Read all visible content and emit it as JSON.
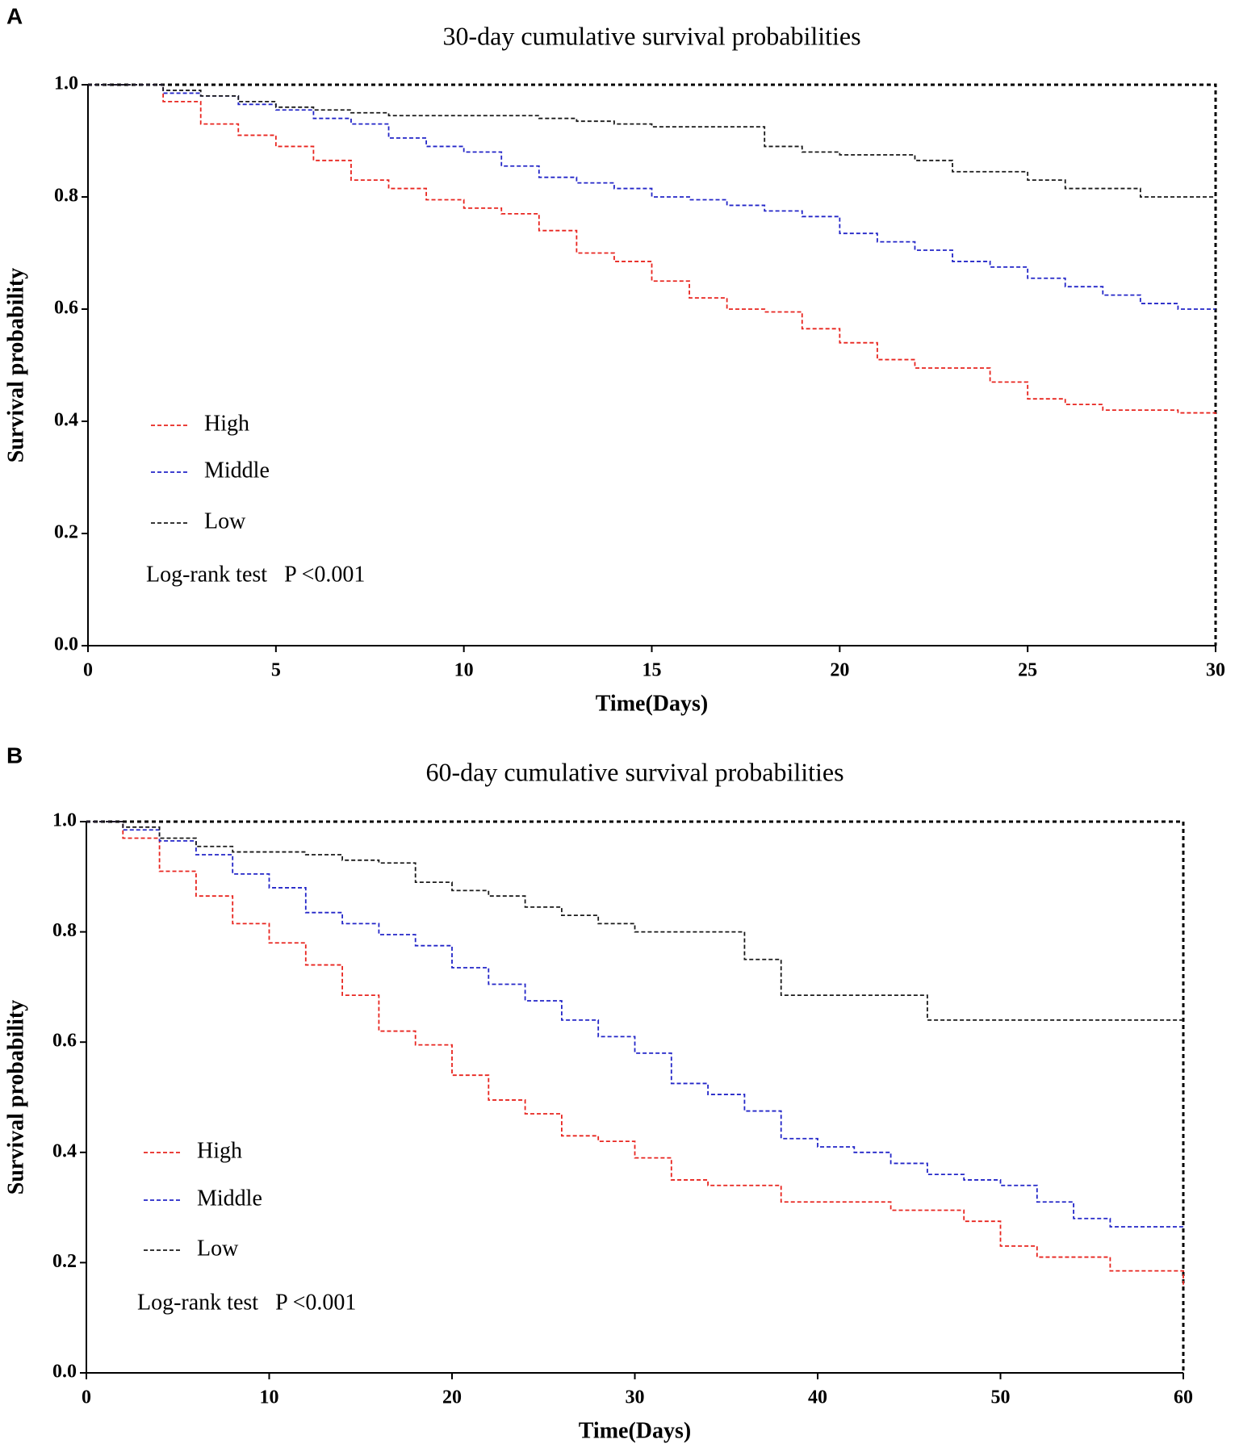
{
  "chart_data": [
    {
      "type": "line",
      "panel": "A",
      "title": "30-day cumulative survival probabilities",
      "x_label": "Time(Days)",
      "y_label": "Survival probability",
      "annotation": "Log-rank test   P <0.001",
      "x": [
        0,
        1,
        2,
        3,
        4,
        5,
        6,
        7,
        8,
        9,
        10,
        11,
        12,
        13,
        14,
        15,
        16,
        17,
        18,
        19,
        20,
        21,
        22,
        23,
        24,
        25,
        26,
        27,
        28,
        29,
        30
      ],
      "series": [
        {
          "name": "High",
          "color": "#e8251f",
          "values": [
            1,
            1,
            0.97,
            0.93,
            0.91,
            0.89,
            0.865,
            0.83,
            0.815,
            0.795,
            0.78,
            0.77,
            0.74,
            0.7,
            0.685,
            0.65,
            0.62,
            0.6,
            0.595,
            0.565,
            0.54,
            0.51,
            0.495,
            0.495,
            0.47,
            0.44,
            0.43,
            0.42,
            0.42,
            0.415,
            0.41
          ]
        },
        {
          "name": "Middle",
          "color": "#2326c8",
          "values": [
            1,
            1,
            0.985,
            0.98,
            0.965,
            0.955,
            0.94,
            0.93,
            0.905,
            0.89,
            0.88,
            0.855,
            0.835,
            0.825,
            0.815,
            0.8,
            0.795,
            0.785,
            0.775,
            0.765,
            0.735,
            0.72,
            0.705,
            0.685,
            0.675,
            0.655,
            0.64,
            0.625,
            0.61,
            0.6,
            0.6
          ]
        },
        {
          "name": "Low",
          "color": "#1a1a1a",
          "values": [
            1,
            1,
            0.99,
            0.98,
            0.97,
            0.96,
            0.955,
            0.95,
            0.945,
            0.945,
            0.945,
            0.945,
            0.94,
            0.935,
            0.93,
            0.925,
            0.925,
            0.925,
            0.89,
            0.88,
            0.875,
            0.875,
            0.865,
            0.845,
            0.845,
            0.83,
            0.815,
            0.815,
            0.8,
            0.8,
            0.8
          ]
        }
      ],
      "xlim": [
        0,
        30
      ],
      "xticks": [
        0,
        5,
        10,
        15,
        20,
        25,
        30
      ],
      "ylim": [
        0,
        1
      ],
      "yticks": [
        {
          "value": 0,
          "label": "0.0"
        },
        0.2,
        0.4,
        0.6,
        0.8,
        {
          "value": 1,
          "label": "1.0"
        }
      ]
    },
    {
      "type": "line",
      "panel": "B",
      "title": "60-day cumulative survival probabilities",
      "x_label": "Time(Days)",
      "y_label": "Survival probability",
      "annotation": "Log-rank test   P <0.001",
      "x": [
        0,
        2,
        4,
        6,
        8,
        10,
        12,
        14,
        16,
        18,
        20,
        22,
        24,
        26,
        28,
        30,
        32,
        34,
        36,
        38,
        40,
        42,
        44,
        46,
        48,
        50,
        52,
        54,
        56,
        58,
        60
      ],
      "series": [
        {
          "name": "High",
          "color": "#e8251f",
          "values": [
            1,
            0.97,
            0.91,
            0.865,
            0.815,
            0.78,
            0.74,
            0.685,
            0.62,
            0.595,
            0.54,
            0.495,
            0.47,
            0.43,
            0.42,
            0.39,
            0.35,
            0.34,
            0.34,
            0.31,
            0.31,
            0.31,
            0.295,
            0.295,
            0.275,
            0.23,
            0.21,
            0.21,
            0.185,
            0.185,
            0.16
          ]
        },
        {
          "name": "Middle",
          "color": "#2326c8",
          "values": [
            1,
            0.985,
            0.965,
            0.94,
            0.905,
            0.88,
            0.835,
            0.815,
            0.795,
            0.775,
            0.735,
            0.705,
            0.675,
            0.64,
            0.61,
            0.58,
            0.525,
            0.505,
            0.475,
            0.425,
            0.41,
            0.4,
            0.38,
            0.36,
            0.35,
            0.34,
            0.31,
            0.28,
            0.265,
            0.265,
            0.265
          ]
        },
        {
          "name": "Low",
          "color": "#1a1a1a",
          "values": [
            1,
            0.99,
            0.97,
            0.955,
            0.945,
            0.945,
            0.94,
            0.93,
            0.925,
            0.89,
            0.875,
            0.865,
            0.845,
            0.83,
            0.815,
            0.8,
            0.8,
            0.8,
            0.75,
            0.685,
            0.685,
            0.685,
            0.685,
            0.64,
            0.64,
            0.64,
            0.64,
            0.64,
            0.64,
            0.64,
            0.64
          ]
        }
      ],
      "xlim": [
        0,
        60
      ],
      "xticks": [
        0,
        10,
        20,
        30,
        40,
        50,
        60
      ],
      "ylim": [
        0,
        1
      ],
      "yticks": [
        {
          "value": 0,
          "label": "0.0"
        },
        0.2,
        0.4,
        0.6,
        0.8,
        {
          "value": 1,
          "label": "1.0"
        }
      ]
    }
  ]
}
